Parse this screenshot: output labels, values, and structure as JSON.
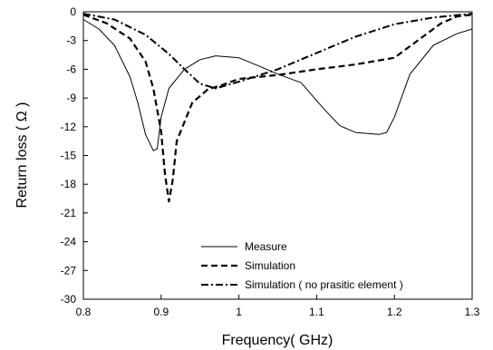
{
  "chart_data": {
    "type": "line",
    "title": "",
    "xlabel": "Frequency( GHz)",
    "ylabel": "Return loss ( Ω )",
    "xlim": [
      0.8,
      1.3
    ],
    "ylim": [
      -30,
      0
    ],
    "x_ticks": [
      "0.8",
      "0.9",
      "1",
      "1.1",
      "1.2",
      "1.3"
    ],
    "y_ticks": [
      "0",
      "-3",
      "-6",
      "-9",
      "-12",
      "-15",
      "-18",
      "-21",
      "-24",
      "-27",
      "-30"
    ],
    "grid": false,
    "legend_position": "bottom-right",
    "colors": {
      "line": "#000000",
      "background": "#ffffff"
    },
    "series": [
      {
        "name": "Measure",
        "line_style": "solid",
        "x": [
          0.8,
          0.82,
          0.84,
          0.86,
          0.87,
          0.88,
          0.89,
          0.895,
          0.9,
          0.91,
          0.93,
          0.95,
          0.97,
          1.0,
          1.03,
          1.05,
          1.08,
          1.11,
          1.13,
          1.15,
          1.18,
          1.19,
          1.2,
          1.22,
          1.25,
          1.28,
          1.3
        ],
        "y": [
          -0.8,
          -1.8,
          -3.5,
          -6.8,
          -9.5,
          -12.8,
          -14.5,
          -14.3,
          -11.0,
          -8.0,
          -6.0,
          -5.0,
          -4.6,
          -4.8,
          -5.8,
          -6.5,
          -7.4,
          -10.2,
          -11.9,
          -12.6,
          -12.8,
          -12.6,
          -11.0,
          -6.5,
          -3.5,
          -2.3,
          -1.8
        ]
      },
      {
        "name": "Simulation",
        "line_style": "dashed",
        "x": [
          0.8,
          0.83,
          0.86,
          0.88,
          0.89,
          0.9,
          0.905,
          0.91,
          0.915,
          0.92,
          0.94,
          0.96,
          0.98,
          1.0,
          1.05,
          1.1,
          1.15,
          1.2,
          1.23,
          1.26,
          1.28,
          1.3
        ],
        "y": [
          -0.3,
          -1.2,
          -2.8,
          -5.2,
          -8.0,
          -12.5,
          -17.0,
          -19.8,
          -17.5,
          -13.5,
          -9.5,
          -8.1,
          -7.6,
          -7.0,
          -6.6,
          -6.0,
          -5.5,
          -4.8,
          -3.0,
          -1.2,
          -0.5,
          -0.3
        ]
      },
      {
        "name": "Simulation ( no prasitic element )",
        "line_style": "dash-dot",
        "x": [
          0.8,
          0.84,
          0.88,
          0.91,
          0.93,
          0.95,
          0.97,
          1.0,
          1.05,
          1.1,
          1.15,
          1.2,
          1.25,
          1.3
        ],
        "y": [
          -0.2,
          -0.8,
          -2.4,
          -4.4,
          -6.0,
          -7.5,
          -8.0,
          -7.3,
          -6.0,
          -4.3,
          -2.6,
          -1.3,
          -0.6,
          -0.2
        ]
      }
    ]
  }
}
